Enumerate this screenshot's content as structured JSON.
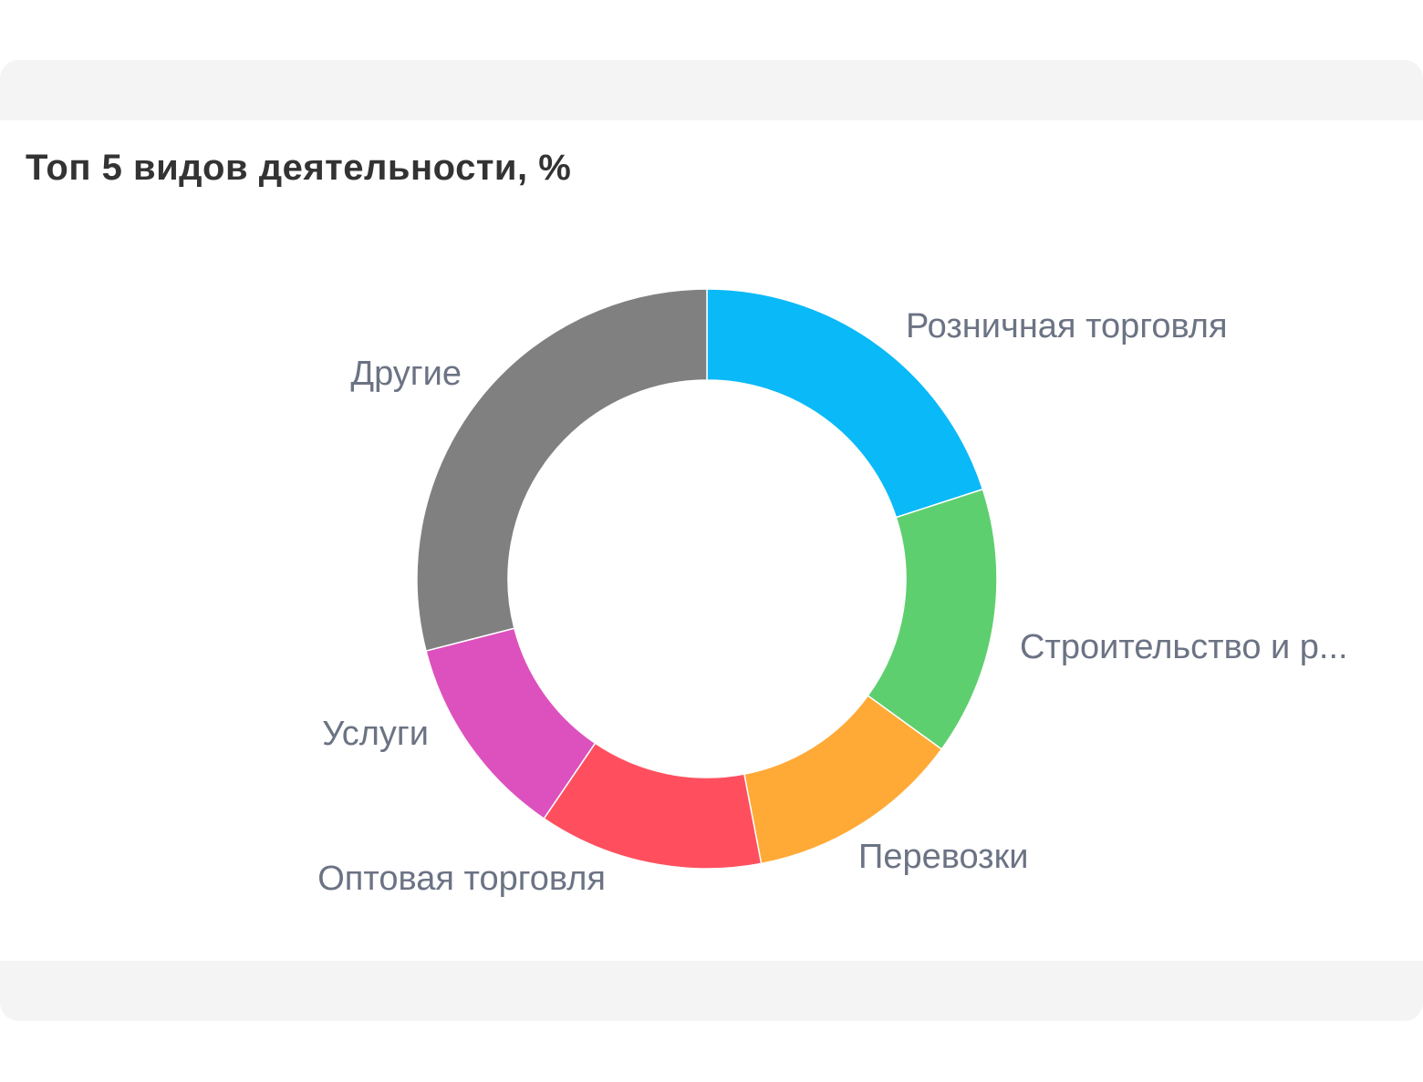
{
  "chart_data": {
    "type": "pie",
    "variant": "donut",
    "title": "Топ 5 видов деятельности, %",
    "start_angle_deg": 0,
    "direction": "clockwise",
    "slices": [
      {
        "label": "Розничная торговля",
        "value": 20,
        "color": "#0ab9f7"
      },
      {
        "label": "Строительство и р...",
        "value": 15,
        "color": "#5ecf6e"
      },
      {
        "label": "Перевозки",
        "value": 12,
        "color": "#ffaa36"
      },
      {
        "label": "Оптовая торговля",
        "value": 12.5,
        "color": "#ff4f5e"
      },
      {
        "label": "Услуги",
        "value": 11.5,
        "color": "#dd51be"
      },
      {
        "label": "Другие",
        "value": 29,
        "color": "#808080"
      }
    ],
    "legend": "none"
  }
}
